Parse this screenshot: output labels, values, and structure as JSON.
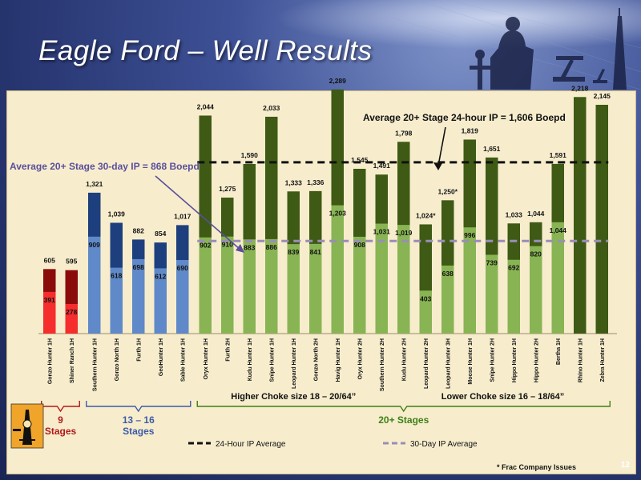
{
  "title": "Eagle Ford – Well Results",
  "page_number": "12",
  "footnote": "* Frac Company Issues",
  "colors": {
    "panel_bg": "#f7edcd",
    "red_dark": "#8b0b0b",
    "red_light": "#f52d2d",
    "blue_dark": "#1e3f7d",
    "blue_light": "#5f89c9",
    "green_dark": "#3e5a14",
    "green_light": "#89b454",
    "dash_24": "#111111",
    "dash_30": "#9a8db8",
    "group_red": "#b01a1a",
    "group_blue": "#3d5aa8",
    "group_green": "#3f7f14",
    "arrow_purple": "#5b4e9b"
  },
  "chart_data": {
    "type": "bar",
    "categories": [
      "Gonzo Hunter 1H",
      "Shiner Ranch 1H",
      "Southern Hunter 1H",
      "Gonzo North 1H",
      "Furth 1H",
      "GeoHunter 1H",
      "Sable Hunter 1H",
      "Oryx Hunter 1H",
      "Furth 2H",
      "Kudu Hunter 1H",
      "Snipe Hunter 1H",
      "Leopard Hunter 1H",
      "Gonzo North 2H",
      "Havig Hunter 1H",
      "Oryx Hunter 2H",
      "Southern Hunter 2H",
      "Kudu Hunter 2H",
      "Leopard Hunter 2H",
      "Leopard Hunter 3H",
      "Moose Hunter 1H",
      "Snipe Hunter 2H",
      "Hippo Hunter 1H",
      "Hippo Hunter 2H",
      "Bertha 1H",
      "Rhino Hunter 1H",
      "Zebra Hunter 1H"
    ],
    "series": [
      {
        "name": "24-Hour IP",
        "values": [
          605,
          595,
          1321,
          1039,
          882,
          854,
          1017,
          2044,
          1275,
          1590,
          2033,
          1333,
          1336,
          2289,
          1545,
          1491,
          1798,
          1024,
          1250,
          1819,
          1651,
          1033,
          1044,
          1591,
          2218,
          2145
        ],
        "labels": [
          "605",
          "595",
          "1,321",
          "1,039",
          "882",
          "854",
          "1,017",
          "2,044",
          "1,275",
          "1,590",
          "2,033",
          "1,333",
          "1,336",
          "2,289",
          "1,545",
          "1,491",
          "1,798",
          "1,024*",
          "1,250*",
          "1,819",
          "1,651",
          "1,033",
          "1,044",
          "1,591",
          "2,218",
          "2,145"
        ]
      },
      {
        "name": "30-Day IP",
        "values": [
          391,
          278,
          909,
          618,
          698,
          612,
          690,
          902,
          910,
          883,
          886,
          839,
          841,
          1203,
          908,
          1031,
          1019,
          403,
          638,
          996,
          739,
          692,
          820,
          1044,
          null,
          null
        ],
        "labels": [
          "391",
          "278",
          "909",
          "618",
          "698",
          "612",
          "690",
          "902",
          "910",
          "883",
          "886",
          "839",
          "841",
          "1,203",
          "908",
          "1,031",
          "1,019",
          "403",
          "638",
          "996",
          "739",
          "692",
          "820",
          "1,044",
          "",
          ""
        ]
      }
    ],
    "groups": [
      {
        "label": "9 Stages",
        "start": 0,
        "end": 1,
        "color": "red"
      },
      {
        "label": "13 – 16 Stages",
        "start": 2,
        "end": 6,
        "color": "blue"
      },
      {
        "label": "20+ Stages",
        "start": 7,
        "end": 25,
        "color": "green"
      }
    ],
    "choke_labels": [
      {
        "text": "Higher Choke size 18 – 20/64”",
        "start": 7,
        "end": 15
      },
      {
        "text": "Lower Choke size 16 – 18/64”",
        "start": 16,
        "end": 25
      }
    ],
    "reference_lines": [
      {
        "name": "24-Hour IP Average",
        "value": 1606,
        "start": 7,
        "end": 25,
        "style": "dashed-black"
      },
      {
        "name": "30-Day IP Average",
        "value": 868,
        "start": 7,
        "end": 25,
        "style": "dashed-purple"
      }
    ],
    "annotations": [
      {
        "text": "Average 20+ Stage 24-hour IP = 1,606 Boepd",
        "target": "24-Hour IP Average"
      },
      {
        "text": "Average 20+ Stage 30-day IP = 868 Boepd",
        "target": "30-Day IP Average"
      }
    ],
    "legend": [
      {
        "label": "24-Hour IP Average",
        "style": "dashed-black"
      },
      {
        "label": "30-Day IP Average",
        "style": "dashed-purple"
      }
    ],
    "legend_position": "bottom",
    "ylim": [
      0,
      2400
    ],
    "grid": false,
    "xlabel": "",
    "ylabel": ""
  }
}
